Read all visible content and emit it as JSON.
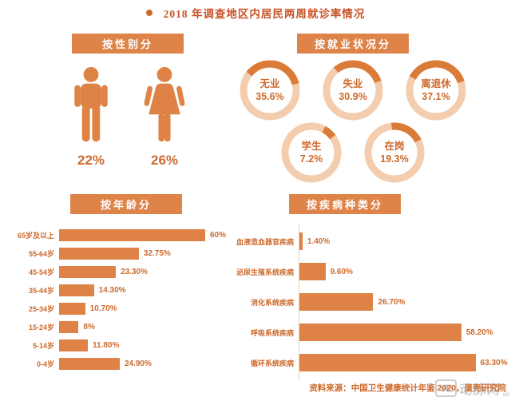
{
  "title": {
    "text": "2018 年调查地区内居民两周就诊率情况"
  },
  "panels": {
    "gender": {
      "header": "按性别分"
    },
    "employment": {
      "header": "按就业状况分"
    },
    "age": {
      "header": "按年龄分"
    },
    "disease": {
      "header": "按疾病种类分"
    }
  },
  "footer": {
    "source": "资料来源：中国卫生健康统计年鉴 2020，蛋壳研究院",
    "watermark": {
      "logo": "VB",
      "text": "动脉网",
      "sub": "od"
    }
  },
  "colors": {
    "primary": "#de8345",
    "banner": "#df8449",
    "ring_light": "#f3cdae",
    "ring_dark": "#db7b38",
    "text_orange": "#cd6a2d",
    "title": "#c85328",
    "watermark": "#b9bdc6"
  },
  "chart_data": [
    {
      "type": "pictogram",
      "title": "按性别分",
      "categories": [
        "男",
        "女"
      ],
      "values": [
        22,
        26
      ],
      "value_labels": [
        "22%",
        "26%"
      ],
      "unit": "%"
    },
    {
      "type": "donut-set",
      "title": "按就业状况分",
      "items": [
        {
          "label": "无业",
          "value": 35.6,
          "value_label": "35.6%",
          "start": -52
        },
        {
          "label": "失业",
          "value": 30.9,
          "value_label": "30.9%",
          "start": -40
        },
        {
          "label": "离退休",
          "value": 37.1,
          "value_label": "37.1%",
          "start": -62
        },
        {
          "label": "学生",
          "value": 7.2,
          "value_label": "7.2%",
          "start": 28
        },
        {
          "label": "在岗",
          "value": 19.3,
          "value_label": "19.3%",
          "start": -6
        }
      ],
      "layout": {
        "rows": [
          3,
          2
        ],
        "legend": "inside",
        "unit": "%"
      }
    },
    {
      "type": "bar",
      "orientation": "horizontal",
      "title": "按年龄分",
      "categories": [
        "65岁及以上",
        "55-64岁",
        "45-54岁",
        "35-44岁",
        "25-34岁",
        "15-24岁",
        "5-14岁",
        "0-4岁"
      ],
      "values": [
        60,
        32.75,
        23.3,
        14.3,
        10.7,
        8,
        11.8,
        24.9
      ],
      "value_labels": [
        "60%",
        "32.75%",
        "23.30%",
        "14.30%",
        "10.70%",
        "8%",
        "11.80%",
        "24.90%"
      ],
      "xlabel": "",
      "ylabel": "",
      "xlim": [
        0,
        65
      ],
      "grid": false
    },
    {
      "type": "bar",
      "orientation": "horizontal",
      "title": "按疾病种类分",
      "categories": [
        "血液造血器官疾病",
        "泌尿生殖系统疾病",
        "消化系统疾病",
        "呼吸系统疾病",
        "循环系统疾病"
      ],
      "values": [
        1.4,
        9.6,
        26.7,
        58.2,
        63.3
      ],
      "value_labels": [
        "1.40%",
        "9.60%",
        "26.70%",
        "58.20%",
        "63.30%"
      ],
      "xlabel": "",
      "ylabel": "",
      "xlim": [
        0,
        70
      ],
      "grid": false
    }
  ]
}
